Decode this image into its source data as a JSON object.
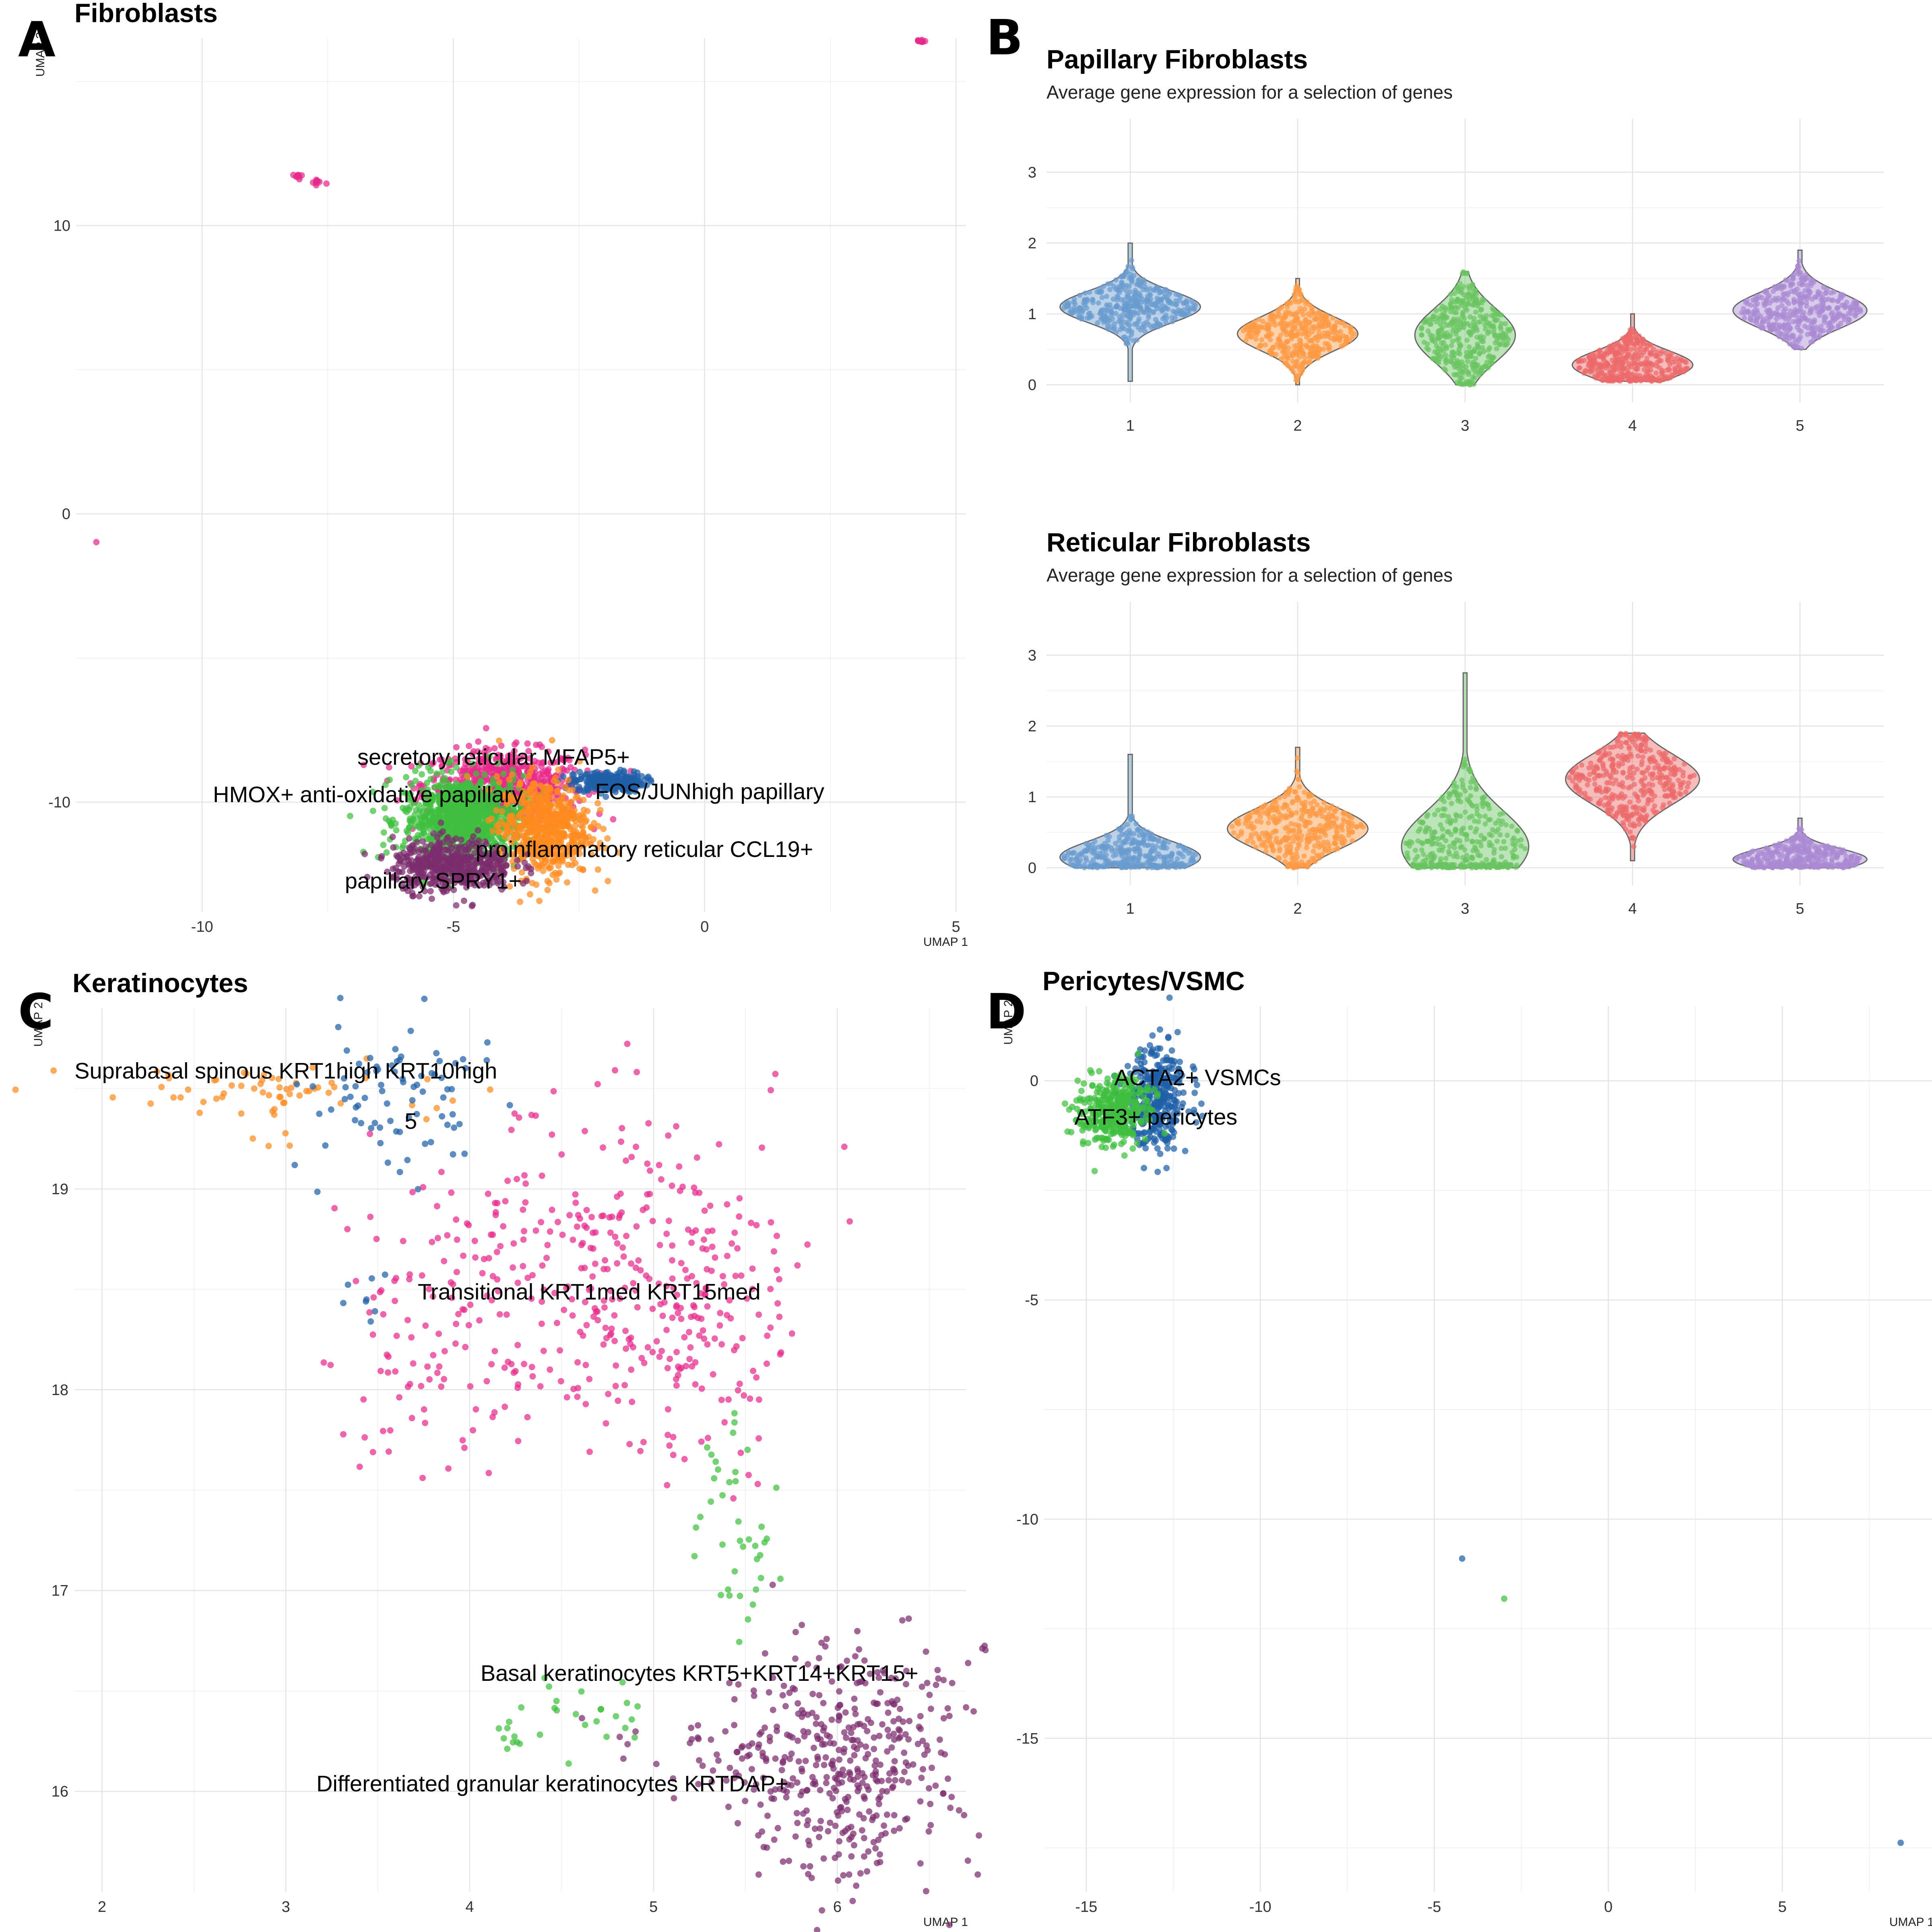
{
  "panel_labels": [
    "A",
    "B",
    "C",
    "D"
  ],
  "colors": {
    "pink": "#e7298a",
    "blue": "#1f5fa8",
    "green": "#3fbf3f",
    "orange": "#ff8a1f",
    "purple": "#7b2d6e",
    "violin_blue": "#6a9bcf",
    "violin_orange": "#fd9a45",
    "violin_green": "#69c461",
    "violin_red": "#ec6a6a",
    "violin_purple": "#a98ad3"
  },
  "chart_data": [
    {
      "id": "A",
      "type": "scatter",
      "title": "Fibroblasts",
      "xlabel": "UMAP 1",
      "ylabel": "UMAP 2",
      "xlim": [
        -12.5,
        5.2
      ],
      "ylim": [
        -13.8,
        16.5
      ],
      "xticks": [
        -10,
        -5,
        0,
        5
      ],
      "yticks": [
        -10,
        0,
        10
      ],
      "clusters": [
        {
          "label": "secretory reticular MFAP5+",
          "color": "#e7298a",
          "label_at": [
            -4.2,
            -8.7
          ],
          "blobs": [
            [
              -4.0,
              -9.4,
              0.8,
              0.6,
              600
            ],
            [
              -8.1,
              11.7,
              0.05,
              0.05,
              8
            ],
            [
              -7.7,
              11.5,
              0.1,
              0.1,
              10
            ],
            [
              4.3,
              16.4,
              0.05,
              0.03,
              12
            ],
            [
              -12.1,
              -1.0,
              0.02,
              0.02,
              1
            ]
          ]
        },
        {
          "label": "FOS/JUNhigh papillary",
          "color": "#1f5fa8",
          "label_at": [
            0.1,
            -9.9
          ],
          "blobs": [
            [
              -1.9,
              -9.3,
              0.35,
              0.18,
              250
            ]
          ]
        },
        {
          "label": "HMOX+ anti-oxidative papillary",
          "color": "#3fbf3f",
          "label_at": [
            -6.7,
            -10.0
          ],
          "blobs": [
            [
              -4.8,
              -10.6,
              0.6,
              0.75,
              900
            ]
          ]
        },
        {
          "label": "proinflammatory  reticular CCL19+",
          "color": "#ff8a1f",
          "label_at": [
            -1.2,
            -11.9
          ],
          "blobs": [
            [
              -3.2,
              -10.9,
              0.45,
              0.85,
              600
            ]
          ]
        },
        {
          "label": "papillary SPRY1+",
          "color": "#7b2d6e",
          "label_at": [
            -5.4,
            -13.0
          ],
          "blobs": [
            [
              -5.0,
              -12.2,
              0.6,
              0.45,
              500
            ]
          ]
        }
      ]
    },
    {
      "id": "B1",
      "type": "violin",
      "title": "Papillary Fibroblasts",
      "subtitle": "Average gene expression for a selection of genes",
      "categories": [
        "1",
        "2",
        "3",
        "4",
        "5"
      ],
      "ylim": [
        -0.25,
        3.3
      ],
      "yticks": [
        0,
        1,
        2,
        3
      ],
      "violins": [
        {
          "mean": 1.1,
          "sd": 0.22,
          "min": 0.05,
          "max": 2.0,
          "width": 0.42
        },
        {
          "mean": 0.72,
          "sd": 0.24,
          "min": 0.0,
          "max": 1.5,
          "width": 0.36
        },
        {
          "mean": 0.7,
          "sd": 0.38,
          "min": 0.0,
          "max": 1.6,
          "width": 0.3
        },
        {
          "mean": 0.28,
          "sd": 0.2,
          "min": 0.05,
          "max": 1.0,
          "width": 0.36
        },
        {
          "mean": 1.05,
          "sd": 0.25,
          "min": 0.5,
          "max": 1.9,
          "width": 0.4
        }
      ]
    },
    {
      "id": "B2",
      "type": "violin",
      "title": "Reticular Fibroblasts",
      "subtitle": "Average gene expression for a selection of genes",
      "categories": [
        "1",
        "2",
        "3",
        "4",
        "5"
      ],
      "ylim": [
        -0.25,
        3.3
      ],
      "yticks": [
        0,
        1,
        2,
        3
      ],
      "violins": [
        {
          "mean": 0.15,
          "sd": 0.22,
          "min": 0.0,
          "max": 1.6,
          "width": 0.42
        },
        {
          "mean": 0.55,
          "sd": 0.28,
          "min": 0.0,
          "max": 1.7,
          "width": 0.42
        },
        {
          "mean": 0.3,
          "sd": 0.5,
          "min": 0.0,
          "max": 2.75,
          "width": 0.38
        },
        {
          "mean": 1.25,
          "sd": 0.35,
          "min": 0.1,
          "max": 1.9,
          "width": 0.4
        },
        {
          "mean": 0.12,
          "sd": 0.15,
          "min": 0.0,
          "max": 0.7,
          "width": 0.4
        }
      ]
    },
    {
      "id": "C",
      "type": "scatter",
      "title": "Keratinocytes",
      "xlabel": "UMAP 1",
      "ylabel": "UMAP 2",
      "xlim": [
        1.85,
        6.7
      ],
      "ylim": [
        15.5,
        19.9
      ],
      "xticks": [
        2,
        3,
        4,
        5,
        6
      ],
      "yticks": [
        16,
        17,
        18,
        19
      ],
      "clusters": [
        {
          "label": "Suprabasal spinous KRT1high KRT10high",
          "color": "#ff8a1f",
          "label_at": [
            3.0,
            19.55
          ],
          "blobs": [
            [
              2.7,
              19.5,
              0.5,
              0.06,
              60
            ],
            [
              2.9,
              19.2,
              0.1,
              0.15,
              6
            ]
          ]
        },
        {
          "label": "5",
          "color": "#1f5fa8",
          "label_at": [
            3.68,
            19.3
          ],
          "blobs": [
            [
              3.6,
              19.45,
              0.25,
              0.18,
              80
            ],
            [
              3.4,
              18.5,
              0.08,
              0.12,
              8
            ]
          ]
        },
        {
          "label": "Transitional KRT1med KRT15med",
          "color": "#e7298a",
          "label_at": [
            4.65,
            18.45
          ],
          "blobs": [
            [
              4.6,
              18.6,
              0.55,
              0.4,
              350
            ],
            [
              5.3,
              18.2,
              0.2,
              0.35,
              80
            ],
            [
              3.7,
              18.1,
              0.25,
              0.25,
              40
            ]
          ]
        },
        {
          "label": "Basal keratinocytes KRT5+KRT14+KRT15+",
          "color": "#3fbf3f",
          "label_at": [
            5.25,
            16.55
          ],
          "blobs": [
            [
              5.45,
              17.3,
              0.12,
              0.3,
              40
            ],
            [
              4.6,
              16.35,
              0.3,
              0.08,
              25
            ],
            [
              4.2,
              16.25,
              0.04,
              0.04,
              6
            ]
          ]
        },
        {
          "label": "Differentiated granular keratinocytes KRTDAP+",
          "color": "#7b2d6e",
          "label_at": [
            4.45,
            16.0
          ],
          "blobs": [
            [
              6.05,
              16.15,
              0.3,
              0.28,
              420
            ],
            [
              5.3,
              16.2,
              0.25,
              0.1,
              30
            ]
          ]
        }
      ]
    },
    {
      "id": "D",
      "type": "scatter",
      "title": "Pericytes/VSMC",
      "xlabel": "UMAP 1",
      "ylabel": "UMAP 2",
      "xlim": [
        -16.2,
        9.3
      ],
      "ylim": [
        -18.5,
        1.7
      ],
      "xticks": [
        -15,
        -10,
        -5,
        0,
        5
      ],
      "yticks": [
        -15,
        -10,
        -5,
        0
      ],
      "clusters": [
        {
          "label": "ACTA2+  VSMCs",
          "color": "#1f5fa8",
          "label_at": [
            -11.8,
            -0.1
          ],
          "blobs": [
            [
              -13.0,
              -0.4,
              0.45,
              0.6,
              350
            ],
            [
              -4.2,
              -10.9,
              0.01,
              0.01,
              1
            ],
            [
              8.4,
              -17.4,
              0.01,
              0.01,
              1
            ]
          ]
        },
        {
          "label": "ATF3+ pericytes",
          "color": "#3fbf3f",
          "label_at": [
            -13.0,
            -1.0
          ],
          "blobs": [
            [
              -14.2,
              -0.7,
              0.5,
              0.4,
              350
            ],
            [
              -3.0,
              -11.8,
              0.01,
              0.01,
              1
            ]
          ]
        }
      ]
    }
  ]
}
